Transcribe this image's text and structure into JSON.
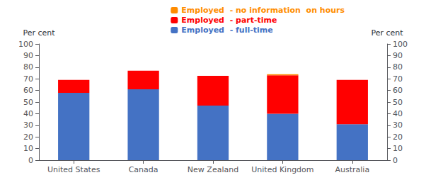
{
  "chart_data": {
    "type": "bar",
    "stacked": true,
    "categories": [
      "United States",
      "Canada",
      "New Zealand",
      "United Kingdom",
      "Australia"
    ],
    "series": [
      {
        "name": "Employed  - full-time",
        "color": "#4472C4",
        "values": [
          58,
          61,
          47,
          40,
          31
        ]
      },
      {
        "name": "Employed  - part-time",
        "color": "#FF0000",
        "values": [
          11,
          16,
          25.5,
          33,
          38
        ]
      },
      {
        "name": "Employed  - no information  on hours",
        "color": "#FF8C00",
        "values": [
          0,
          0,
          0,
          1,
          0
        ]
      }
    ],
    "ylabel": "Per cent",
    "y2label": "Per cent",
    "ylim": [
      0,
      100
    ],
    "yticks": [
      0,
      10,
      20,
      30,
      40,
      50,
      60,
      70,
      80,
      90,
      100
    ],
    "y2lim": [
      0,
      100
    ],
    "y2ticks": [
      0,
      10,
      20,
      30,
      40,
      50,
      60,
      70,
      80,
      90,
      100
    ],
    "grid": false,
    "legend": "upper right"
  }
}
